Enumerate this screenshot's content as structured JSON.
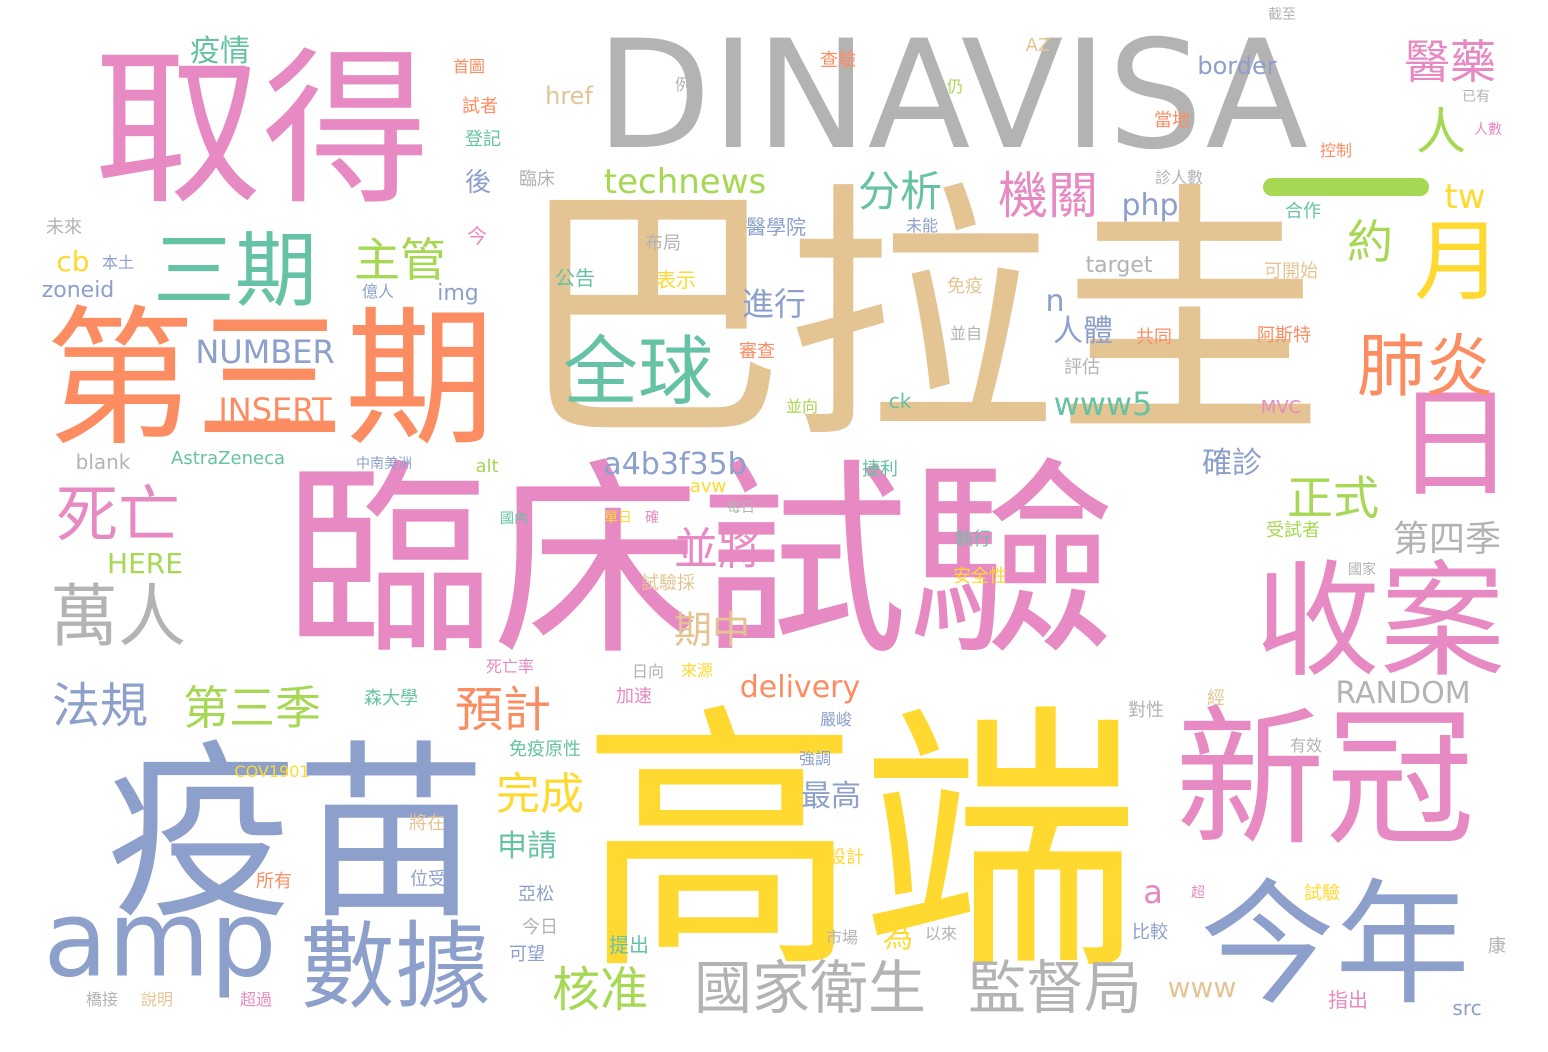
{
  "colors": {
    "gray": "#b3b3b3",
    "tan": "#e5c494",
    "pink": "#e78ac3",
    "yellow": "#ffd92f",
    "blue": "#8da0cb",
    "orange": "#fc8d62",
    "green": "#66c2a5",
    "lime": "#a6d854"
  },
  "words": [
    {
      "text": "DINAVISA",
      "color": "gray"
    },
    {
      "text": "巴拉圭",
      "color": "tan"
    },
    {
      "text": "臨床試驗",
      "color": "pink"
    },
    {
      "text": "高端",
      "color": "yellow"
    },
    {
      "text": "疫苗",
      "color": "blue"
    },
    {
      "text": "取得",
      "color": "pink"
    },
    {
      "text": "第三期",
      "color": "orange"
    },
    {
      "text": "新冠",
      "color": "pink"
    },
    {
      "text": "今年",
      "color": "blue"
    },
    {
      "text": "收案",
      "color": "pink"
    },
    {
      "text": "日",
      "color": "pink"
    },
    {
      "text": "amp",
      "color": "blue"
    },
    {
      "text": "數據",
      "color": "blue"
    },
    {
      "text": "全球",
      "color": "green"
    },
    {
      "text": "三期",
      "color": "green"
    },
    {
      "text": "月",
      "color": "yellow"
    },
    {
      "text": "肺炎",
      "color": "orange"
    },
    {
      "text": "國家衛生",
      "color": "gray"
    },
    {
      "text": "監督局",
      "color": "gray"
    },
    {
      "text": "萬人",
      "color": "gray"
    },
    {
      "text": "死亡",
      "color": "pink"
    },
    {
      "text": "醫藥",
      "color": "pink"
    },
    {
      "text": "機關",
      "color": "pink"
    },
    {
      "text": "核准",
      "color": "lime"
    },
    {
      "text": "法規",
      "color": "blue"
    },
    {
      "text": "第三季",
      "color": "lime"
    },
    {
      "text": "預計",
      "color": "orange"
    },
    {
      "text": "完成",
      "color": "yellow"
    },
    {
      "text": "並將",
      "color": "pink"
    },
    {
      "text": "正式",
      "color": "lime"
    },
    {
      "text": "主管",
      "color": "lime"
    },
    {
      "text": "分析",
      "color": "green"
    },
    {
      "text": "technews",
      "color": "lime"
    },
    {
      "text": "人",
      "color": "lime"
    },
    {
      "text": "約",
      "color": "lime"
    },
    {
      "text": "NUMBER",
      "color": "blue"
    },
    {
      "text": "INSERT",
      "color": "orange"
    },
    {
      "text": "a4b3f35b",
      "color": "blue"
    },
    {
      "text": "www5",
      "color": "green"
    },
    {
      "text": "第四季",
      "color": "gray"
    },
    {
      "text": "RANDOM",
      "color": "gray"
    },
    {
      "text": "delivery",
      "color": "orange"
    },
    {
      "text": "期中",
      "color": "tan"
    },
    {
      "text": "進行",
      "color": "blue"
    },
    {
      "text": "人體",
      "color": "blue"
    },
    {
      "text": "php",
      "color": "blue"
    },
    {
      "text": "tw",
      "color": "yellow"
    },
    {
      "text": "確診",
      "color": "blue"
    },
    {
      "text": "疫情",
      "color": "green"
    },
    {
      "text": "後",
      "color": "blue"
    },
    {
      "text": "HERE",
      "color": "lime"
    },
    {
      "text": "申請",
      "color": "green"
    },
    {
      "text": "最高",
      "color": "blue"
    },
    {
      "text": "www",
      "color": "tan"
    },
    {
      "text": "a",
      "color": "pink"
    },
    {
      "text": "n",
      "color": "blue"
    },
    {
      "text": "cb",
      "color": "yellow"
    },
    {
      "text": "為",
      "color": "yellow"
    },
    {
      "text": "href",
      "color": "tan"
    },
    {
      "text": "border",
      "color": "blue"
    },
    {
      "text": "target",
      "color": "gray"
    },
    {
      "text": "img",
      "color": "blue"
    },
    {
      "text": "zoneid",
      "color": "blue"
    },
    {
      "text": "blank",
      "color": "gray"
    },
    {
      "text": "AstraZeneca",
      "color": "green"
    },
    {
      "text": "alt",
      "color": "lime"
    },
    {
      "text": "avw",
      "color": "yellow"
    },
    {
      "text": "ck",
      "color": "green"
    },
    {
      "text": "MVC",
      "color": "pink"
    },
    {
      "text": "AZ",
      "color": "tan"
    },
    {
      "text": "COV1901",
      "color": "yellow"
    },
    {
      "text": "src",
      "color": "blue"
    },
    {
      "text": "首圖",
      "color": "orange"
    },
    {
      "text": "試者",
      "color": "orange"
    },
    {
      "text": "登記",
      "color": "green"
    },
    {
      "text": "臨床",
      "color": "gray"
    },
    {
      "text": "醫學院",
      "color": "blue"
    },
    {
      "text": "布局",
      "color": "gray"
    },
    {
      "text": "公告",
      "color": "green"
    },
    {
      "text": "表示",
      "color": "yellow"
    },
    {
      "text": "查驗",
      "color": "orange"
    },
    {
      "text": "例",
      "color": "gray"
    },
    {
      "text": "仍",
      "color": "lime"
    },
    {
      "text": "截至",
      "color": "gray"
    },
    {
      "text": "當地",
      "color": "orange"
    },
    {
      "text": "已有",
      "color": "gray"
    },
    {
      "text": "人數",
      "color": "pink"
    },
    {
      "text": "控制",
      "color": "orange"
    },
    {
      "text": "診人數",
      "color": "gray"
    },
    {
      "text": "合作",
      "color": "green"
    },
    {
      "text": "未能",
      "color": "blue"
    },
    {
      "text": "可開始",
      "color": "tan"
    },
    {
      "text": "免疫",
      "color": "tan"
    },
    {
      "text": "並自",
      "color": "gray"
    },
    {
      "text": "共同",
      "color": "orange"
    },
    {
      "text": "阿斯特",
      "color": "orange"
    },
    {
      "text": "評估",
      "color": "gray"
    },
    {
      "text": "審查",
      "color": "orange"
    },
    {
      "text": "並向",
      "color": "lime"
    },
    {
      "text": "捷利",
      "color": "green"
    },
    {
      "text": "中南美洲",
      "color": "blue"
    },
    {
      "text": "國內",
      "color": "green"
    },
    {
      "text": "單日",
      "color": "yellow"
    },
    {
      "text": "確",
      "color": "pink"
    },
    {
      "text": "每日",
      "color": "gray"
    },
    {
      "text": "試驗採",
      "color": "tan"
    },
    {
      "text": "執行",
      "color": "green"
    },
    {
      "text": "安全性",
      "color": "yellow"
    },
    {
      "text": "受試者",
      "color": "lime"
    },
    {
      "text": "國家",
      "color": "gray"
    },
    {
      "text": "死亡率",
      "color": "pink"
    },
    {
      "text": "日向",
      "color": "gray"
    },
    {
      "text": "來源",
      "color": "yellow"
    },
    {
      "text": "加速",
      "color": "pink"
    },
    {
      "text": "對性",
      "color": "gray"
    },
    {
      "text": "經",
      "color": "tan"
    },
    {
      "text": "森大學",
      "color": "green"
    },
    {
      "text": "免疫原性",
      "color": "green"
    },
    {
      "text": "嚴峻",
      "color": "blue"
    },
    {
      "text": "強調",
      "color": "blue"
    },
    {
      "text": "有效",
      "color": "gray"
    },
    {
      "text": "將在",
      "color": "tan"
    },
    {
      "text": "設計",
      "color": "yellow"
    },
    {
      "text": "所有",
      "color": "orange"
    },
    {
      "text": "位受",
      "color": "blue"
    },
    {
      "text": "亞松",
      "color": "blue"
    },
    {
      "text": "超",
      "color": "pink"
    },
    {
      "text": "試驗",
      "color": "yellow"
    },
    {
      "text": "今日",
      "color": "gray"
    },
    {
      "text": "可望",
      "color": "blue"
    },
    {
      "text": "提出",
      "color": "green"
    },
    {
      "text": "市場",
      "color": "gray"
    },
    {
      "text": "以來",
      "color": "gray"
    },
    {
      "text": "比較",
      "color": "blue"
    },
    {
      "text": "指出",
      "color": "pink"
    },
    {
      "text": "康",
      "color": "gray"
    },
    {
      "text": "橋接",
      "color": "gray"
    },
    {
      "text": "說明",
      "color": "tan"
    },
    {
      "text": "超過",
      "color": "pink"
    },
    {
      "text": "未來",
      "color": "gray"
    },
    {
      "text": "本土",
      "color": "blue"
    },
    {
      "text": "今",
      "color": "pink"
    },
    {
      "text": "億人",
      "color": "blue"
    }
  ]
}
